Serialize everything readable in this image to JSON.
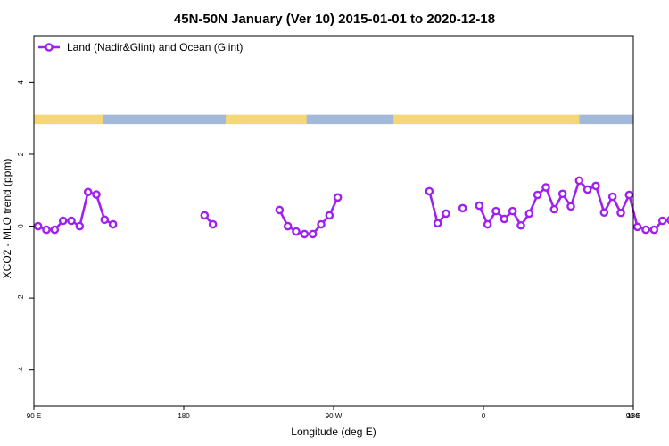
{
  "chart_data": {
    "type": "line",
    "title": "45N-50N January (Ver 10)   2015-01-01 to 2020-12-18",
    "xlabel": "Longitude (deg E)",
    "ylabel": "XCO2 - MLO trend (ppm)",
    "xlim": [
      90,
      450
    ],
    "ylim": [
      -5,
      5.3
    ],
    "x_ticks": [
      {
        "value": 90,
        "label": "90 E"
      },
      {
        "value": 180,
        "label": "180"
      },
      {
        "value": 270,
        "label": "90 W"
      },
      {
        "value": 360,
        "label": "0"
      },
      {
        "value": 450,
        "label": "90 E"
      },
      {
        "value": 540,
        "label": "180"
      }
    ],
    "y_ticks": [
      {
        "value": -4,
        "label": "-4"
      },
      {
        "value": -2,
        "label": "-2"
      },
      {
        "value": 0,
        "label": "0"
      },
      {
        "value": 2,
        "label": "2"
      },
      {
        "value": 4,
        "label": "4"
      }
    ],
    "legend": {
      "position": "top-left",
      "entries": [
        "Land (Nadir&Glint) and Ocean (Glint)"
      ]
    },
    "colors": {
      "series": "#a020f0",
      "land": "#f5d77a",
      "ocean": "#a3b9d9"
    },
    "map_strip": {
      "y_range": [
        2.84,
        3.1
      ]
    },
    "series": [
      {
        "name": "Land (Nadir&Glint) and Ocean (Glint)",
        "segments": [
          [
            [
              92.5,
              0.0
            ],
            [
              97.5,
              -0.1
            ],
            [
              102.5,
              -0.1
            ],
            [
              107.5,
              0.15
            ],
            [
              112.5,
              0.15
            ],
            [
              117.5,
              0.0
            ],
            [
              122.5,
              0.95
            ],
            [
              127.5,
              0.88
            ],
            [
              132.5,
              0.18
            ],
            [
              137.5,
              0.05
            ]
          ],
          [
            [
              192.5,
              0.3
            ],
            [
              197.5,
              0.05
            ]
          ],
          [
            [
              237.5,
              0.45
            ],
            [
              242.5,
              0.0
            ],
            [
              247.5,
              -0.15
            ],
            [
              252.5,
              -0.22
            ],
            [
              257.5,
              -0.22
            ],
            [
              262.5,
              0.05
            ],
            [
              267.5,
              0.3
            ],
            [
              272.5,
              0.8
            ]
          ],
          [
            [
              327.5,
              0.97
            ],
            [
              332.5,
              0.08
            ],
            [
              337.5,
              0.35
            ]
          ],
          [
            [
              347.5,
              0.5
            ]
          ],
          [
            [
              357.5,
              0.57
            ],
            [
              362.5,
              0.05
            ],
            [
              367.5,
              0.42
            ],
            [
              372.5,
              0.2
            ],
            [
              377.5,
              0.42
            ],
            [
              382.5,
              0.02
            ],
            [
              387.5,
              0.35
            ],
            [
              392.5,
              0.87
            ],
            [
              397.5,
              1.08
            ],
            [
              402.5,
              0.47
            ],
            [
              407.5,
              0.9
            ],
            [
              412.5,
              0.55
            ],
            [
              417.5,
              1.27
            ],
            [
              422.5,
              1.02
            ],
            [
              427.5,
              1.12
            ],
            [
              432.5,
              0.38
            ],
            [
              437.5,
              0.82
            ],
            [
              442.5,
              0.37
            ],
            [
              447.5,
              0.87
            ],
            [
              452.5,
              -0.02
            ],
            [
              457.5,
              -0.1
            ],
            [
              462.5,
              -0.1
            ],
            [
              467.5,
              0.15
            ],
            [
              472.5,
              0.17
            ],
            [
              477.5,
              -0.02
            ],
            [
              482.5,
              0.95
            ],
            [
              487.5,
              0.87
            ],
            [
              492.5,
              0.18
            ],
            [
              497.5,
              0.03
            ]
          ]
        ]
      }
    ]
  }
}
